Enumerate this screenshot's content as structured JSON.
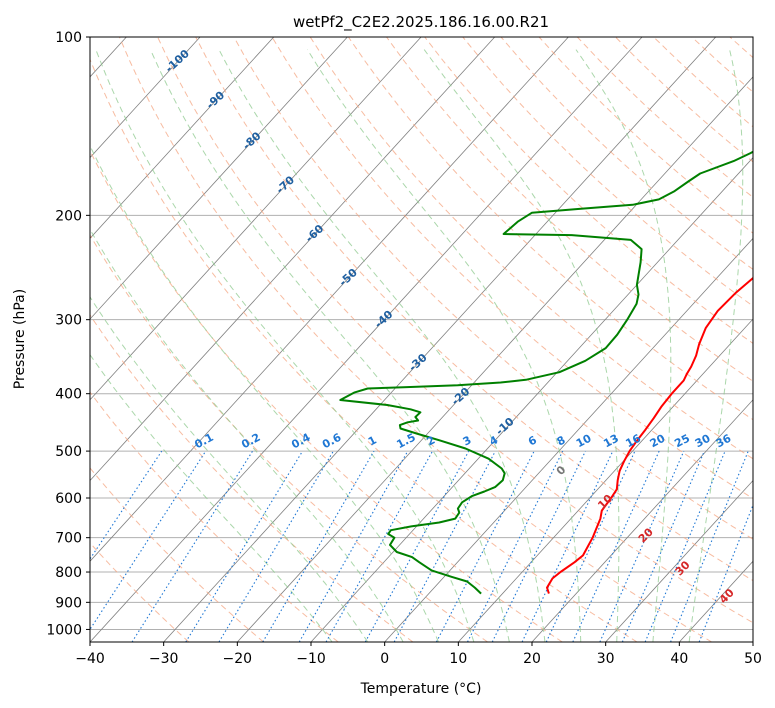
{
  "chart_data": {
    "type": "line",
    "title": "wetPf2_C2E2.2025.186.16.00.R21",
    "xlabel": "Temperature (°C)",
    "ylabel": "Pressure (hPa)",
    "xlim": [
      -40,
      50
    ],
    "ylim": [
      1050,
      100
    ],
    "y_scale": "log",
    "grid": true,
    "x_ticks": [
      -40,
      -30,
      -20,
      -10,
      0,
      10,
      20,
      30,
      40,
      50
    ],
    "y_ticks": [
      100,
      200,
      300,
      400,
      500,
      600,
      700,
      800,
      900,
      1000
    ],
    "series": [
      {
        "color": "#ff0000",
        "points": [
          [
            16.3,
            870
          ],
          [
            15.3,
            850
          ],
          [
            14.9,
            820
          ],
          [
            15.2,
            800
          ],
          [
            15.9,
            770
          ],
          [
            16.2,
            750
          ],
          [
            15.3,
            700
          ],
          [
            14.0,
            650
          ],
          [
            13.2,
            630
          ],
          [
            12.9,
            600
          ],
          [
            12.6,
            580
          ],
          [
            11.6,
            560
          ],
          [
            10.7,
            540
          ],
          [
            10.1,
            520
          ],
          [
            9.6,
            500
          ],
          [
            9.3,
            480
          ],
          [
            9.1,
            460
          ],
          [
            8.8,
            440
          ],
          [
            8.4,
            420
          ],
          [
            8.2,
            400
          ],
          [
            8.2,
            380
          ],
          [
            7.8,
            370
          ],
          [
            7.5,
            360
          ],
          [
            6.8,
            345
          ],
          [
            5.8,
            330
          ],
          [
            4.7,
            310
          ],
          [
            4.2,
            290
          ],
          [
            4.4,
            270
          ],
          [
            5.1,
            250
          ],
          [
            6.5,
            230
          ],
          [
            8.5,
            215
          ],
          [
            10.8,
            200
          ],
          [
            12.2,
            190
          ],
          [
            12.6,
            180
          ],
          [
            12.3,
            170
          ],
          [
            11.3,
            160
          ],
          [
            10.6,
            150
          ],
          [
            10.8,
            140
          ],
          [
            11.6,
            133
          ],
          [
            11.9,
            125
          ],
          [
            12.5,
            118
          ],
          [
            13.5,
            112
          ],
          [
            14.5,
            107
          ],
          [
            15.2,
            100
          ]
        ]
      },
      {
        "color": "#008000",
        "points": [
          [
            7.1,
            870
          ],
          [
            5.5,
            850
          ],
          [
            3.7,
            830
          ],
          [
            1.0,
            815
          ],
          [
            -2.5,
            795
          ],
          [
            -5.2,
            770
          ],
          [
            -6.8,
            755
          ],
          [
            -9.5,
            740
          ],
          [
            -11.3,
            720
          ],
          [
            -11.6,
            700
          ],
          [
            -12.9,
            690
          ],
          [
            -13.0,
            680
          ],
          [
            -10.7,
            670
          ],
          [
            -7.4,
            660
          ],
          [
            -5.7,
            650
          ],
          [
            -5.9,
            635
          ],
          [
            -6.6,
            625
          ],
          [
            -6.8,
            610
          ],
          [
            -6.2,
            595
          ],
          [
            -5.1,
            585
          ],
          [
            -4.2,
            575
          ],
          [
            -4.0,
            560
          ],
          [
            -4.6,
            545
          ],
          [
            -5.6,
            535
          ],
          [
            -8.6,
            515
          ],
          [
            -13.0,
            495
          ],
          [
            -17.4,
            480
          ],
          [
            -21.5,
            467
          ],
          [
            -24.3,
            458
          ],
          [
            -24.8,
            452
          ],
          [
            -24.1,
            447
          ],
          [
            -22.9,
            444
          ],
          [
            -23.7,
            438
          ],
          [
            -23.6,
            430
          ],
          [
            -25.3,
            425
          ],
          [
            -29.0,
            418
          ],
          [
            -36.0,
            410
          ],
          [
            -35.0,
            398
          ],
          [
            -33.7,
            392
          ],
          [
            -29.0,
            390
          ],
          [
            -21.9,
            387
          ],
          [
            -16.4,
            383
          ],
          [
            -13.3,
            379
          ],
          [
            -9.7,
            368
          ],
          [
            -7.6,
            352
          ],
          [
            -6.4,
            335
          ],
          [
            -6.5,
            318
          ],
          [
            -7.0,
            300
          ],
          [
            -7.7,
            282
          ],
          [
            -8.6,
            272
          ],
          [
            -10.0,
            262
          ],
          [
            -12.3,
            240
          ],
          [
            -13.8,
            228
          ],
          [
            -16.4,
            220
          ],
          [
            -25.0,
            216
          ],
          [
            -34.4,
            215
          ],
          [
            -34.0,
            205
          ],
          [
            -33.2,
            198
          ],
          [
            -27.0,
            195
          ],
          [
            -20.5,
            192
          ],
          [
            -17.6,
            188
          ],
          [
            -16.5,
            182
          ],
          [
            -15.8,
            175
          ],
          [
            -15.2,
            170
          ],
          [
            -12.2,
            162
          ],
          [
            -10.9,
            157
          ],
          [
            -9.6,
            151
          ],
          [
            -8.9,
            145
          ],
          [
            -8.0,
            140
          ],
          [
            -5.4,
            126
          ],
          [
            -3.9,
            118
          ],
          [
            -2.7,
            112
          ],
          [
            -1.5,
            100
          ]
        ]
      }
    ],
    "dry_adiabats_C": [
      -30,
      -20,
      -10,
      0,
      10,
      20,
      30,
      40,
      50,
      60,
      70,
      80,
      90,
      100,
      110,
      120,
      130,
      140,
      150,
      160,
      170,
      180,
      190,
      200
    ],
    "moist_adiabats_C": [
      -10,
      -5,
      0,
      5,
      10,
      15,
      20,
      25,
      30,
      35,
      40
    ],
    "isotherm_labels": [
      -100,
      -90,
      -80,
      -70,
      -60,
      -50,
      -40,
      -30,
      -20,
      -10
    ],
    "mixing_ratio_labels": [
      "0.1",
      "0.2",
      "0.4",
      "0.6",
      "1",
      "1.5",
      "2",
      "3",
      "4",
      "6",
      "8",
      "10",
      "13",
      "16",
      "20",
      "25",
      "30",
      "36"
    ],
    "dry_adiabat_labels": [
      0,
      10,
      20,
      30,
      40
    ],
    "colors": {
      "temperature": "#ff0000",
      "dewpoint": "#008000",
      "isotherm": "#808080",
      "dry_adiabat": "#f4a582",
      "moist_adiabat": "#8fc98f",
      "mixing_ratio": "#1f77d4",
      "isotherm_label": "#1f5fa0",
      "grid": "#b0b0b0",
      "zero_label": "#777777",
      "adiabat_label": "#d62728"
    }
  }
}
